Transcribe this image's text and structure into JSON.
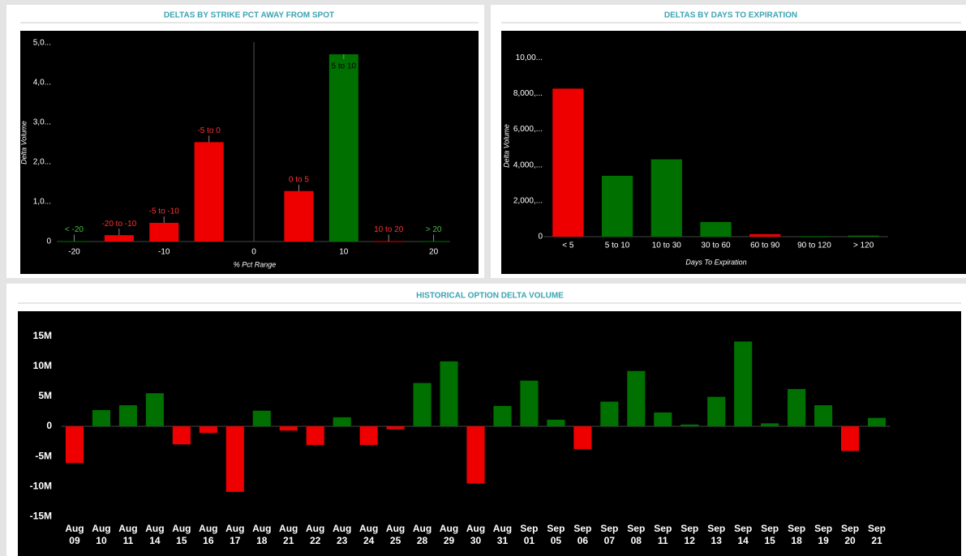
{
  "chart_data": [
    {
      "type": "bar",
      "title": "DELTAS BY STRIKE PCT AWAY FROM SPOT",
      "xlabel": "% Pct Range",
      "ylabel": "Delta Volume",
      "x": [
        -20,
        -15,
        -10,
        -5,
        5,
        10,
        15,
        20
      ],
      "labels": [
        "< -20",
        "-20 to -10",
        "-5 to -10",
        "-5 to 0",
        "0 to 5",
        "5 to 10",
        "10 to 20",
        "> 20"
      ],
      "values": [
        10,
        160,
        470,
        2500,
        1270,
        4710,
        10,
        10
      ],
      "colors": [
        "#007000",
        "#ee0000",
        "#ee0000",
        "#ee0000",
        "#ee0000",
        "#007000",
        "#ee0000",
        "#007000"
      ],
      "xlim": [
        -26,
        25
      ],
      "xticks": [
        -20,
        -10,
        0,
        10,
        20
      ],
      "ylim": [
        0,
        5300
      ],
      "yticks": [
        0,
        {
          "value": 1000,
          "label": "1,0..."
        },
        {
          "value": 2000,
          "label": "2,0..."
        },
        {
          "value": 3000,
          "label": "3,0..."
        },
        {
          "value": 4000,
          "label": "4,0..."
        },
        {
          "value": 5000,
          "label": "5,0..."
        }
      ]
    },
    {
      "type": "bar",
      "title": "DELTAS BY DAYS TO EXPIRATION",
      "xlabel": "Days To Expiration",
      "ylabel": "Delta Volume",
      "categories": [
        "< 5",
        "5 to 10",
        "10 to 30",
        "30 to 60",
        "60 to 90",
        "90 to 120",
        "> 120"
      ],
      "values": [
        8270,
        3400,
        4320,
        820,
        140,
        30,
        60
      ],
      "colors": [
        "#ee0000",
        "#007000",
        "#007000",
        "#007000",
        "#ee0000",
        "#007000",
        "#007000"
      ],
      "ylim": [
        0,
        11500
      ],
      "yticks": [
        0,
        {
          "value": 2000,
          "label": "2,000,..."
        },
        {
          "value": 4000,
          "label": "4,000,..."
        },
        {
          "value": 6000,
          "label": "6,000,..."
        },
        {
          "value": 8000,
          "label": "8,000,..."
        },
        {
          "value": 10000,
          "label": "10,00..."
        }
      ]
    },
    {
      "type": "bar",
      "title": "HISTORICAL OPTION DELTA VOLUME",
      "categories": [
        "Aug 09",
        "Aug 10",
        "Aug 11",
        "Aug 14",
        "Aug 15",
        "Aug 16",
        "Aug 17",
        "Aug 18",
        "Aug 21",
        "Aug 22",
        "Aug 23",
        "Aug 24",
        "Aug 25",
        "Aug 28",
        "Aug 29",
        "Aug 30",
        "Aug 31",
        "Sep 01",
        "Sep 05",
        "Sep 06",
        "Sep 07",
        "Sep 08",
        "Sep 11",
        "Sep 12",
        "Sep 13",
        "Sep 14",
        "Sep 15",
        "Sep 18",
        "Sep 19",
        "Sep 20",
        "Sep 21"
      ],
      "values": [
        -6100000,
        2700000,
        3500000,
        5500000,
        -3000000,
        -1100000,
        -10900000,
        2600000,
        -700000,
        -3100000,
        1500000,
        -3100000,
        -500000,
        7200000,
        10800000,
        -9500000,
        3400000,
        7600000,
        1100000,
        -3800000,
        4100000,
        9200000,
        2300000,
        300000,
        4900000,
        14100000,
        500000,
        6200000,
        3500000,
        -4100000,
        1400000
      ],
      "positive_color": "#007000",
      "negative_color": "#ee0000",
      "ylim": [
        -15900000,
        19000000
      ],
      "yticks": [
        {
          "value": -15000000,
          "label": "-15M"
        },
        {
          "value": -10000000,
          "label": "-10M"
        },
        {
          "value": -5000000,
          "label": "-5M"
        },
        0,
        {
          "value": 5000000,
          "label": "5M"
        },
        {
          "value": 10000000,
          "label": "10M"
        },
        {
          "value": 15000000,
          "label": "15M"
        }
      ]
    }
  ]
}
